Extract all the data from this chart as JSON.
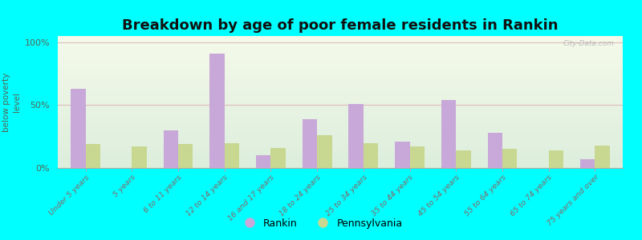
{
  "title": "Breakdown by age of poor female residents in Rankin",
  "ylabel": "percentage\nbelow poverty\nlevel",
  "categories": [
    "Under 5 years",
    "5 years",
    "6 to 11 years",
    "12 to 14 years",
    "16 and 17 years",
    "18 to 24 years",
    "25 to 34 years",
    "35 to 44 years",
    "45 to 54 years",
    "55 to 64 years",
    "65 to 74 years",
    "75 years and over"
  ],
  "rankin_values": [
    63,
    0,
    30,
    91,
    10,
    39,
    51,
    21,
    54,
    28,
    0,
    7
  ],
  "pennsylvania_values": [
    19,
    17,
    19,
    20,
    16,
    26,
    20,
    17,
    14,
    15,
    14,
    18
  ],
  "rankin_color": "#c8a8d8",
  "pennsylvania_color": "#c8d890",
  "background_color": "#00ffff",
  "ylim": [
    0,
    105
  ],
  "yticks": [
    0,
    50,
    100
  ],
  "ytick_labels": [
    "0%",
    "50%",
    "100%"
  ],
  "title_fontsize": 13,
  "axis_label_color": "#556655",
  "tick_label_color": "#886666",
  "legend_labels": [
    "Rankin",
    "Pennsylvania"
  ],
  "watermark": "City-Data.com",
  "grid_color": "#ddbbbb",
  "plot_bg_colors": [
    "#f5faea",
    "#ddeedd"
  ]
}
